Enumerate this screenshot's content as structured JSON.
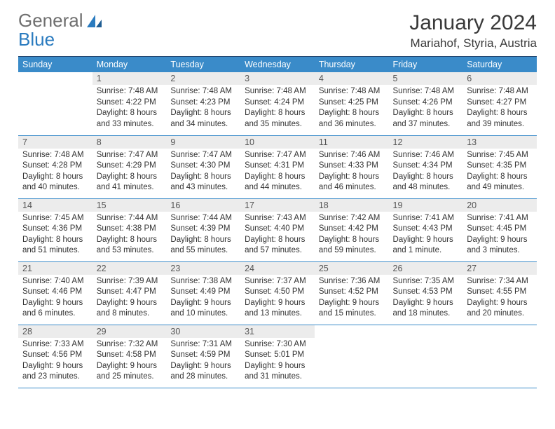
{
  "logo": {
    "word1": "General",
    "word2": "Blue"
  },
  "title": "January 2024",
  "location": "Mariahof, Styria, Austria",
  "colors": {
    "header_bg": "#3a8bc9",
    "header_border": "#20416a",
    "row_border": "#3a8bc9",
    "daynum_bg": "#ececec",
    "logo_grey": "#6f6f6f",
    "logo_blue": "#2a7bbf",
    "text": "#3a3a3a"
  },
  "weekdays": [
    "Sunday",
    "Monday",
    "Tuesday",
    "Wednesday",
    "Thursday",
    "Friday",
    "Saturday"
  ],
  "weeks": [
    [
      null,
      {
        "n": "1",
        "sr": "7:48 AM",
        "ss": "4:22 PM",
        "dl": "8 hours and 33 minutes."
      },
      {
        "n": "2",
        "sr": "7:48 AM",
        "ss": "4:23 PM",
        "dl": "8 hours and 34 minutes."
      },
      {
        "n": "3",
        "sr": "7:48 AM",
        "ss": "4:24 PM",
        "dl": "8 hours and 35 minutes."
      },
      {
        "n": "4",
        "sr": "7:48 AM",
        "ss": "4:25 PM",
        "dl": "8 hours and 36 minutes."
      },
      {
        "n": "5",
        "sr": "7:48 AM",
        "ss": "4:26 PM",
        "dl": "8 hours and 37 minutes."
      },
      {
        "n": "6",
        "sr": "7:48 AM",
        "ss": "4:27 PM",
        "dl": "8 hours and 39 minutes."
      }
    ],
    [
      {
        "n": "7",
        "sr": "7:48 AM",
        "ss": "4:28 PM",
        "dl": "8 hours and 40 minutes."
      },
      {
        "n": "8",
        "sr": "7:47 AM",
        "ss": "4:29 PM",
        "dl": "8 hours and 41 minutes."
      },
      {
        "n": "9",
        "sr": "7:47 AM",
        "ss": "4:30 PM",
        "dl": "8 hours and 43 minutes."
      },
      {
        "n": "10",
        "sr": "7:47 AM",
        "ss": "4:31 PM",
        "dl": "8 hours and 44 minutes."
      },
      {
        "n": "11",
        "sr": "7:46 AM",
        "ss": "4:33 PM",
        "dl": "8 hours and 46 minutes."
      },
      {
        "n": "12",
        "sr": "7:46 AM",
        "ss": "4:34 PM",
        "dl": "8 hours and 48 minutes."
      },
      {
        "n": "13",
        "sr": "7:45 AM",
        "ss": "4:35 PM",
        "dl": "8 hours and 49 minutes."
      }
    ],
    [
      {
        "n": "14",
        "sr": "7:45 AM",
        "ss": "4:36 PM",
        "dl": "8 hours and 51 minutes."
      },
      {
        "n": "15",
        "sr": "7:44 AM",
        "ss": "4:38 PM",
        "dl": "8 hours and 53 minutes."
      },
      {
        "n": "16",
        "sr": "7:44 AM",
        "ss": "4:39 PM",
        "dl": "8 hours and 55 minutes."
      },
      {
        "n": "17",
        "sr": "7:43 AM",
        "ss": "4:40 PM",
        "dl": "8 hours and 57 minutes."
      },
      {
        "n": "18",
        "sr": "7:42 AM",
        "ss": "4:42 PM",
        "dl": "8 hours and 59 minutes."
      },
      {
        "n": "19",
        "sr": "7:41 AM",
        "ss": "4:43 PM",
        "dl": "9 hours and 1 minute."
      },
      {
        "n": "20",
        "sr": "7:41 AM",
        "ss": "4:45 PM",
        "dl": "9 hours and 3 minutes."
      }
    ],
    [
      {
        "n": "21",
        "sr": "7:40 AM",
        "ss": "4:46 PM",
        "dl": "9 hours and 6 minutes."
      },
      {
        "n": "22",
        "sr": "7:39 AM",
        "ss": "4:47 PM",
        "dl": "9 hours and 8 minutes."
      },
      {
        "n": "23",
        "sr": "7:38 AM",
        "ss": "4:49 PM",
        "dl": "9 hours and 10 minutes."
      },
      {
        "n": "24",
        "sr": "7:37 AM",
        "ss": "4:50 PM",
        "dl": "9 hours and 13 minutes."
      },
      {
        "n": "25",
        "sr": "7:36 AM",
        "ss": "4:52 PM",
        "dl": "9 hours and 15 minutes."
      },
      {
        "n": "26",
        "sr": "7:35 AM",
        "ss": "4:53 PM",
        "dl": "9 hours and 18 minutes."
      },
      {
        "n": "27",
        "sr": "7:34 AM",
        "ss": "4:55 PM",
        "dl": "9 hours and 20 minutes."
      }
    ],
    [
      {
        "n": "28",
        "sr": "7:33 AM",
        "ss": "4:56 PM",
        "dl": "9 hours and 23 minutes."
      },
      {
        "n": "29",
        "sr": "7:32 AM",
        "ss": "4:58 PM",
        "dl": "9 hours and 25 minutes."
      },
      {
        "n": "30",
        "sr": "7:31 AM",
        "ss": "4:59 PM",
        "dl": "9 hours and 28 minutes."
      },
      {
        "n": "31",
        "sr": "7:30 AM",
        "ss": "5:01 PM",
        "dl": "9 hours and 31 minutes."
      },
      null,
      null,
      null
    ]
  ],
  "labels": {
    "sunrise": "Sunrise:",
    "sunset": "Sunset:",
    "daylight": "Daylight:"
  }
}
